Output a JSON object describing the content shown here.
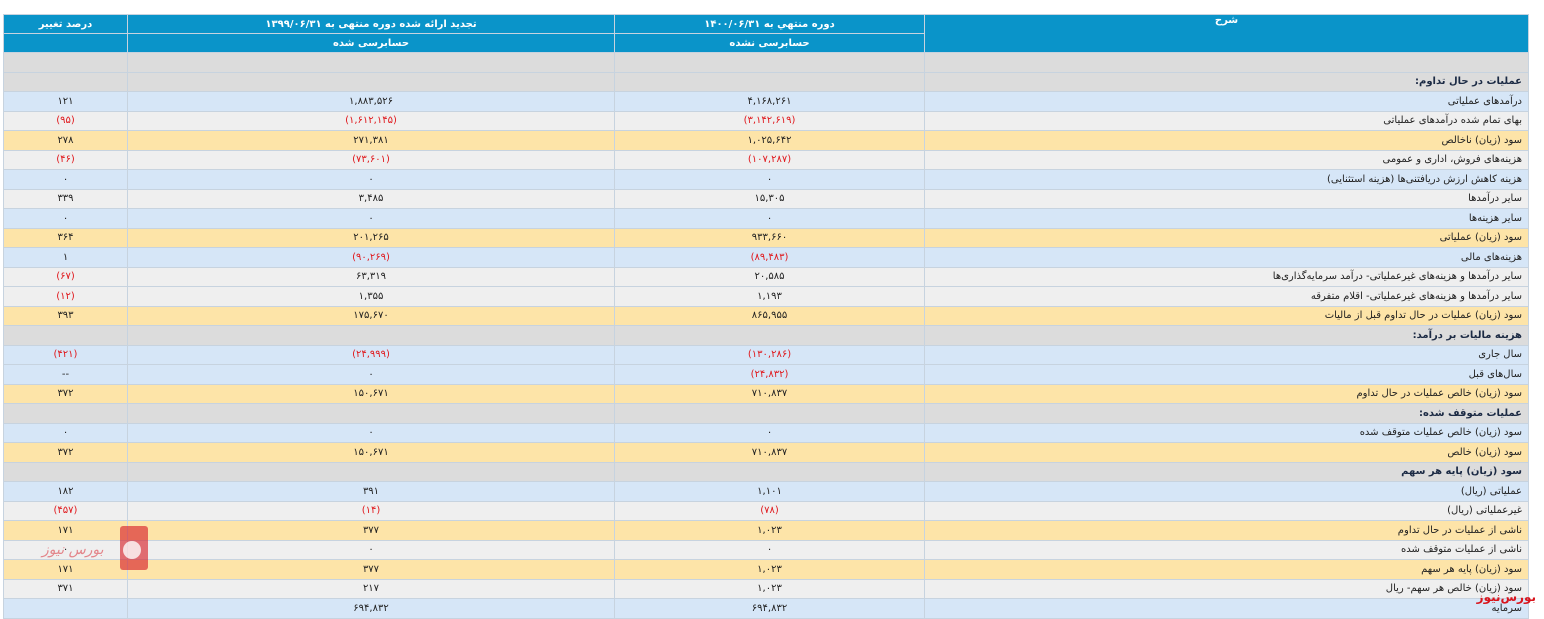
{
  "header": {
    "col_desc": "شرح",
    "col_current": "دوره منتهي به ۱۴۰۰/۰۶/۳۱",
    "col_prior": "تجدید ارائه شده دوره منتهی به ۱۳۹۹/۰۶/۳۱",
    "col_change": "درصد تغییر",
    "current_sub": "حسابرسی نشده",
    "prior_sub": "حسابرسی شده"
  },
  "rows": [
    {
      "type": "sec",
      "desc": "",
      "current": "",
      "prior": "",
      "change": ""
    },
    {
      "type": "sec",
      "desc": "عملیات در حال تداوم:",
      "current": "",
      "prior": "",
      "change": ""
    },
    {
      "type": "blue",
      "desc": "درآمدهای عملیاتی",
      "current": "۴,۱۶۸,۲۶۱",
      "prior": "۱,۸۸۳,۵۲۶",
      "change": "۱۲۱"
    },
    {
      "type": "grey",
      "desc": "بهای تمام شده درآمدهای عملیاتی",
      "current": "(۳,۱۴۲,۶۱۹)",
      "prior": "(۱,۶۱۲,۱۴۵)",
      "change": "(۹۵)",
      "neg": [
        true,
        true,
        true
      ]
    },
    {
      "type": "yellow",
      "desc": "سود (زیان) ناخالص",
      "current": "۱,۰۲۵,۶۴۲",
      "prior": "۲۷۱,۳۸۱",
      "change": "۲۷۸"
    },
    {
      "type": "grey",
      "desc": "هزینه‌های فروش، اداری و عمومی",
      "current": "(۱۰۷,۲۸۷)",
      "prior": "(۷۳,۶۰۱)",
      "change": "(۴۶)",
      "neg": [
        true,
        true,
        true
      ]
    },
    {
      "type": "blue",
      "desc": "هزینه کاهش ارزش دریافتنی‌ها (هزینه استثنایی)",
      "current": "۰",
      "prior": "۰",
      "change": "۰"
    },
    {
      "type": "grey",
      "desc": "سایر درآمدها",
      "current": "۱۵,۳۰۵",
      "prior": "۳,۴۸۵",
      "change": "۳۳۹"
    },
    {
      "type": "blue",
      "desc": "سایر هزینه‌ها",
      "current": "۰",
      "prior": "۰",
      "change": "۰"
    },
    {
      "type": "yellow",
      "desc": "سود (زیان) عملیاتی",
      "current": "۹۳۳,۶۶۰",
      "prior": "۲۰۱,۲۶۵",
      "change": "۳۶۴"
    },
    {
      "type": "blue",
      "desc": "هزینه‌های مالی",
      "current": "(۸۹,۴۸۳)",
      "prior": "(۹۰,۲۶۹)",
      "change": "۱",
      "neg": [
        true,
        true,
        false
      ]
    },
    {
      "type": "grey",
      "desc": "سایر درآمدها و هزینه‌های غیرعملیاتی- درآمد سرمایه‌گذاری‌ها",
      "current": "۲۰,۵۸۵",
      "prior": "۶۳,۳۱۹",
      "change": "(۶۷)",
      "neg": [
        false,
        false,
        true
      ]
    },
    {
      "type": "grey",
      "desc": "سایر درآمدها و هزینه‌های غیرعملیاتی- اقلام متفرقه",
      "current": "۱,۱۹۳",
      "prior": "۱,۳۵۵",
      "change": "(۱۲)",
      "neg": [
        false,
        false,
        true
      ]
    },
    {
      "type": "yellow",
      "desc": "سود (زیان) عملیات در حال تداوم قبل از مالیات",
      "current": "۸۶۵,۹۵۵",
      "prior": "۱۷۵,۶۷۰",
      "change": "۳۹۳"
    },
    {
      "type": "sec",
      "desc": "هزینه مالیات بر درآمد:",
      "current": "",
      "prior": "",
      "change": ""
    },
    {
      "type": "blue",
      "desc": "سال جاری",
      "current": "(۱۳۰,۲۸۶)",
      "prior": "(۲۴,۹۹۹)",
      "change": "(۴۲۱)",
      "neg": [
        true,
        true,
        true
      ]
    },
    {
      "type": "blue",
      "desc": "سال‌های قبل",
      "current": "(۲۴,۸۳۲)",
      "prior": "۰",
      "change": "--",
      "neg": [
        true,
        false,
        false
      ]
    },
    {
      "type": "yellow",
      "desc": "سود (زیان) خالص عملیات در حال تداوم",
      "current": "۷۱۰,۸۳۷",
      "prior": "۱۵۰,۶۷۱",
      "change": "۳۷۲"
    },
    {
      "type": "sec",
      "desc": "عملیات متوقف شده:",
      "current": "",
      "prior": "",
      "change": ""
    },
    {
      "type": "blue",
      "desc": "سود (زیان) خالص عملیات متوقف شده",
      "current": "۰",
      "prior": "۰",
      "change": "۰"
    },
    {
      "type": "yellow",
      "desc": "سود (زیان) خالص",
      "current": "۷۱۰,۸۳۷",
      "prior": "۱۵۰,۶۷۱",
      "change": "۳۷۲"
    },
    {
      "type": "sec",
      "desc": "سود (زیان) پایه هر سهم",
      "current": "",
      "prior": "",
      "change": ""
    },
    {
      "type": "blue",
      "desc": "عملیاتی (ریال)",
      "current": "۱,۱۰۱",
      "prior": "۳۹۱",
      "change": "۱۸۲"
    },
    {
      "type": "grey",
      "desc": "غیرعملیاتی (ریال)",
      "current": "(۷۸)",
      "prior": "(۱۴)",
      "change": "(۴۵۷)",
      "neg": [
        true,
        true,
        true
      ]
    },
    {
      "type": "yellow",
      "desc": "ناشی از عملیات در حال تداوم",
      "current": "۱,۰۲۳",
      "prior": "۳۷۷",
      "change": "۱۷۱"
    },
    {
      "type": "grey",
      "desc": "ناشی از عملیات متوقف شده",
      "current": "۰",
      "prior": "۰",
      "change": "۰"
    },
    {
      "type": "yellow",
      "desc": "سود (زیان) پایه هر سهم",
      "current": "۱,۰۲۳",
      "prior": "۳۷۷",
      "change": "۱۷۱"
    },
    {
      "type": "grey",
      "desc": "سود (زیان) خالص هر سهم- ریال",
      "current": "۱,۰۲۳",
      "prior": "۲۱۷",
      "change": "۳۷۱"
    },
    {
      "type": "blue",
      "desc": "سرمایه",
      "current": "۶۹۴,۸۳۲",
      "prior": "۶۹۴,۸۳۲",
      "change": ""
    }
  ],
  "watermark_text": "بورس نیوز",
  "footer_brand": "بورس‌نیوز",
  "colors": {
    "header": "#0a94c9",
    "negative": "#e0191d",
    "section": "#dcdcdc",
    "blue_row": "#d6e6f7",
    "grey_row": "#efefef",
    "yellow_row": "#fde4a8"
  }
}
